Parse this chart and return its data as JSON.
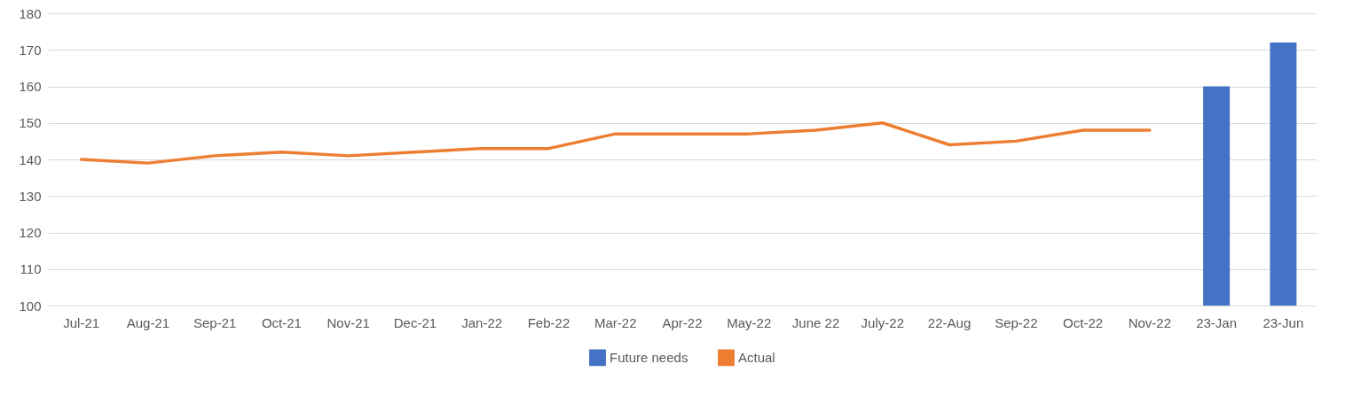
{
  "chart_data": {
    "type": "line",
    "categories": [
      "Jul-21",
      "Aug-21",
      "Sep-21",
      "Oct-21",
      "Nov-21",
      "Dec-21",
      "Jan-22",
      "Feb-22",
      "Mar-22",
      "Apr-22",
      "May-22",
      "June 22",
      "July-22",
      "22-Aug",
      "Sep-22",
      "Oct-22",
      "Nov-22",
      "23-Jan",
      "23-Jun"
    ],
    "series": [
      {
        "name": "Future needs",
        "type": "bar",
        "color": "#4472c4",
        "values": [
          null,
          null,
          null,
          null,
          null,
          null,
          null,
          null,
          null,
          null,
          null,
          null,
          null,
          null,
          null,
          null,
          null,
          160,
          172
        ]
      },
      {
        "name": "Actual",
        "color": "#ed7d31",
        "values": [
          140,
          139,
          141,
          142,
          141,
          142,
          143,
          143,
          147,
          147,
          147,
          148,
          150,
          144,
          145,
          148,
          148,
          null,
          null
        ]
      }
    ],
    "ylim": [
      100,
      180
    ],
    "yticks": [
      100,
      110,
      120,
      130,
      140,
      150,
      160,
      170,
      180
    ],
    "grid": "y",
    "legend": "bottom",
    "marker": "none",
    "line_style": "solid"
  }
}
